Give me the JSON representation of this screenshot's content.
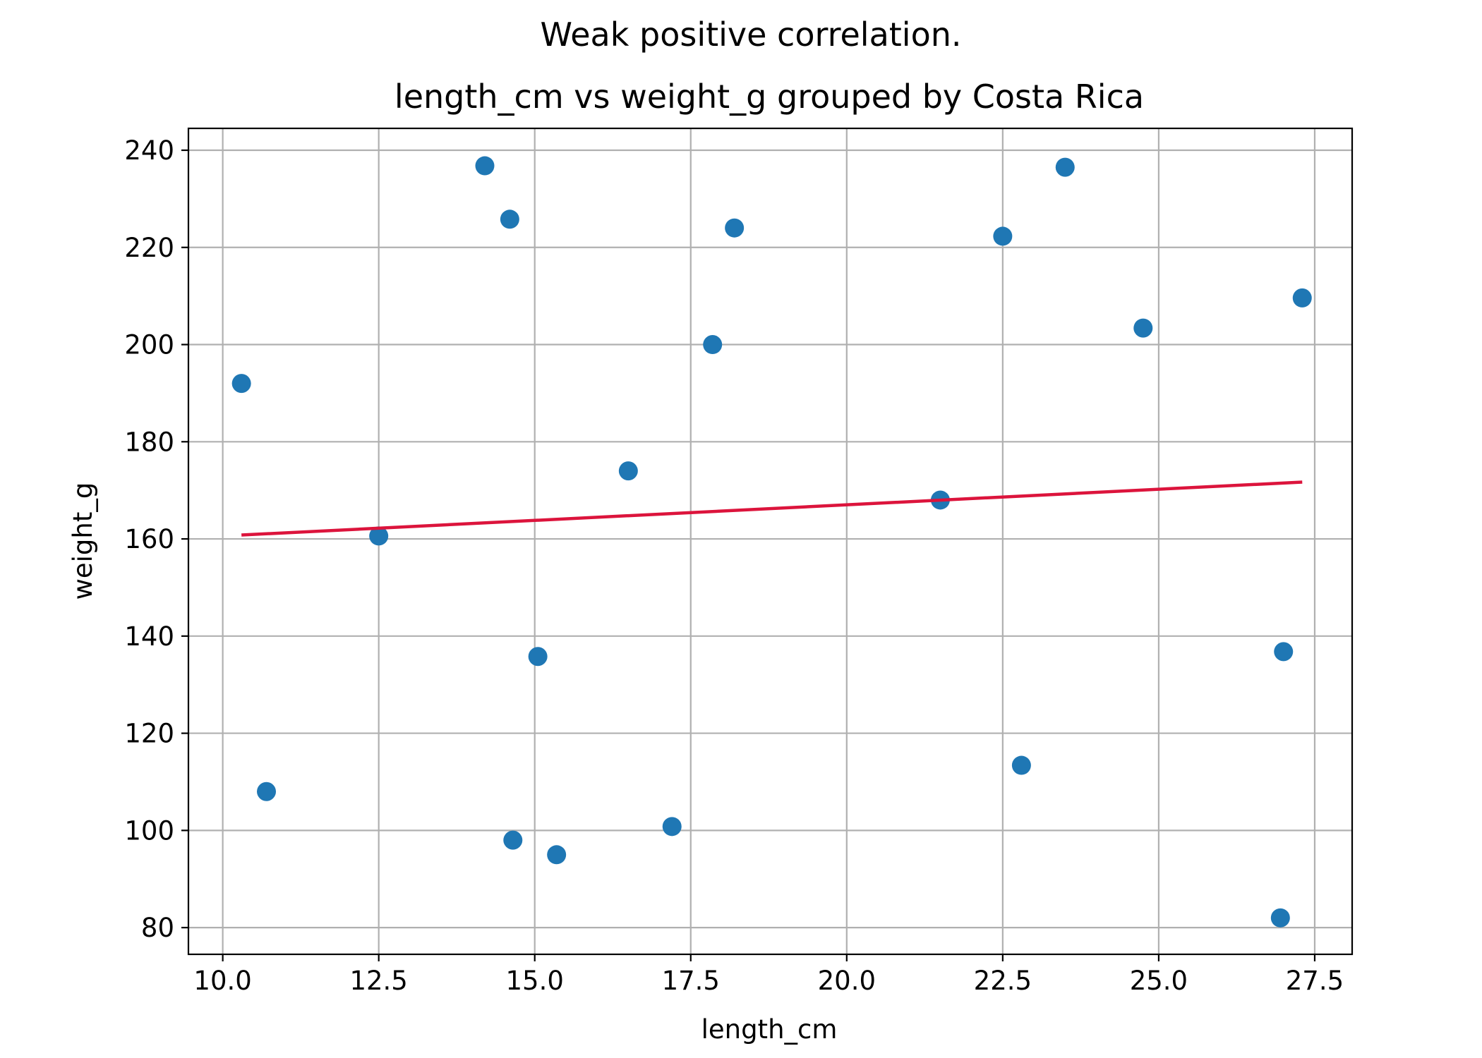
{
  "chart_data": {
    "type": "scatter",
    "suptitle": "Weak positive correlation.",
    "title": "length_cm vs weight_g grouped by Costa Rica",
    "xlabel": "length_cm",
    "ylabel": "weight_g",
    "xlim": [
      9.45,
      28.1
    ],
    "ylim": [
      74.5,
      244.5
    ],
    "xticks": [
      10.0,
      12.5,
      15.0,
      17.5,
      20.0,
      22.5,
      25.0,
      27.5
    ],
    "xtick_labels": [
      "10.0",
      "12.5",
      "15.0",
      "17.5",
      "20.0",
      "22.5",
      "25.0",
      "27.5"
    ],
    "yticks": [
      80,
      100,
      120,
      140,
      160,
      180,
      200,
      220,
      240
    ],
    "ytick_labels": [
      "80",
      "100",
      "120",
      "140",
      "160",
      "180",
      "200",
      "220",
      "240"
    ],
    "grid": true,
    "series": [
      {
        "type": "scatter",
        "color": "#1f77b4",
        "points": [
          {
            "x": 10.3,
            "y": 192
          },
          {
            "x": 10.7,
            "y": 108
          },
          {
            "x": 12.5,
            "y": 160.6
          },
          {
            "x": 14.2,
            "y": 236.8
          },
          {
            "x": 14.6,
            "y": 225.8
          },
          {
            "x": 14.65,
            "y": 98
          },
          {
            "x": 15.05,
            "y": 135.8
          },
          {
            "x": 15.35,
            "y": 95
          },
          {
            "x": 16.5,
            "y": 174
          },
          {
            "x": 17.2,
            "y": 100.8
          },
          {
            "x": 17.85,
            "y": 200
          },
          {
            "x": 18.2,
            "y": 224
          },
          {
            "x": 21.5,
            "y": 168
          },
          {
            "x": 22.5,
            "y": 222.3
          },
          {
            "x": 22.8,
            "y": 113.4
          },
          {
            "x": 23.5,
            "y": 236.5
          },
          {
            "x": 24.75,
            "y": 203.4
          },
          {
            "x": 26.95,
            "y": 82
          },
          {
            "x": 27.0,
            "y": 136.8
          },
          {
            "x": 27.3,
            "y": 209.6
          }
        ]
      },
      {
        "type": "line",
        "color": "#dc143c",
        "points": [
          {
            "x": 10.3,
            "y": 160.8
          },
          {
            "x": 27.3,
            "y": 171.7
          }
        ]
      }
    ]
  }
}
